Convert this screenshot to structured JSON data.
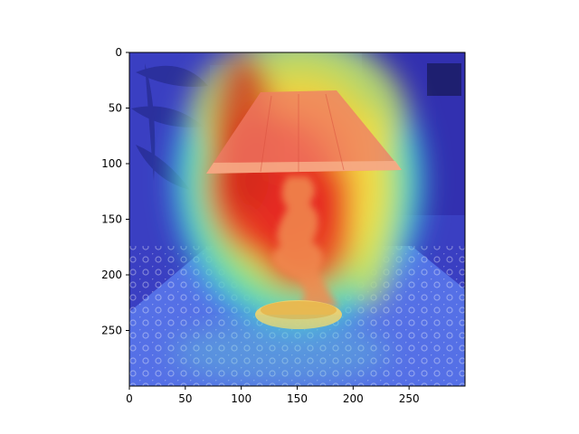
{
  "chart_data": {
    "type": "heatmap",
    "title": "",
    "xlabel": "",
    "ylabel": "",
    "image_size": [
      300,
      300
    ],
    "xlim": [
      0,
      300
    ],
    "ylim": [
      300,
      0
    ],
    "x_ticks": [
      0,
      50,
      100,
      150,
      200,
      250
    ],
    "y_ticks": [
      0,
      50,
      100,
      150,
      200,
      250
    ],
    "x_tick_labels": [
      "0",
      "50",
      "100",
      "150",
      "200",
      "250"
    ],
    "y_tick_labels": [
      "0",
      "50",
      "100",
      "150",
      "200",
      "250"
    ],
    "colormap": "jet",
    "grid": false,
    "hotspot_center": [
      160,
      170
    ],
    "content": "photograph of a table lamp on a lace tablecloth overlaid with an attention heatmap"
  }
}
